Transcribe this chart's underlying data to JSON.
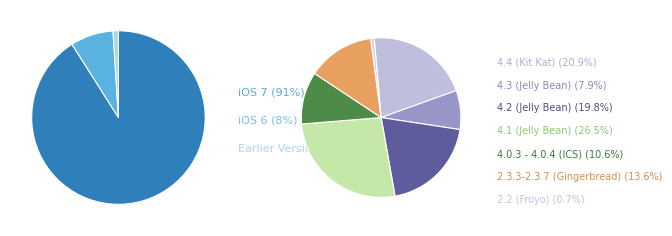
{
  "ios": {
    "labels": [
      "iOS 7 (91%)",
      "iOS 6 (8%)",
      "Earlier Version (1%)"
    ],
    "values": [
      91,
      8,
      1
    ],
    "colors": [
      "#2e7fba",
      "#5ab2e0",
      "#a8d8f0"
    ],
    "text_colors": [
      "#5aabda",
      "#7abfe8",
      "#a8d4ee"
    ],
    "startangle": 90
  },
  "android": {
    "labels": [
      "4.4 (Kit Kat) (20.9%)",
      "4.3 (Jelly Bean) (7.9%)",
      "4.2 (Jelly Bean) (19.8%)",
      "4.1 (Jelly Bean) (26.5%)",
      "4.0.3 - 4.0.4 (ICS) (10.6%)",
      "2.3.3-2.3.7 (Gingerbread) (13.6%)",
      "2.2 (Froyo) (0.7%)"
    ],
    "values": [
      20.9,
      7.9,
      19.8,
      26.5,
      10.6,
      13.6,
      0.7
    ],
    "colors": [
      "#c0bedd",
      "#9896c8",
      "#5e5c9c",
      "#c5e8a8",
      "#4e8a48",
      "#e8a060",
      "#d4d2e8"
    ],
    "text_colors": [
      "#b0aed0",
      "#8886c0",
      "#4e4c8c",
      "#8ec870",
      "#3a7a3a",
      "#d4904e",
      "#c4c2dc"
    ],
    "startangle": 95
  },
  "bg_color": "#ffffff",
  "ios_legend_fontsize": 8,
  "android_legend_fontsize": 7
}
